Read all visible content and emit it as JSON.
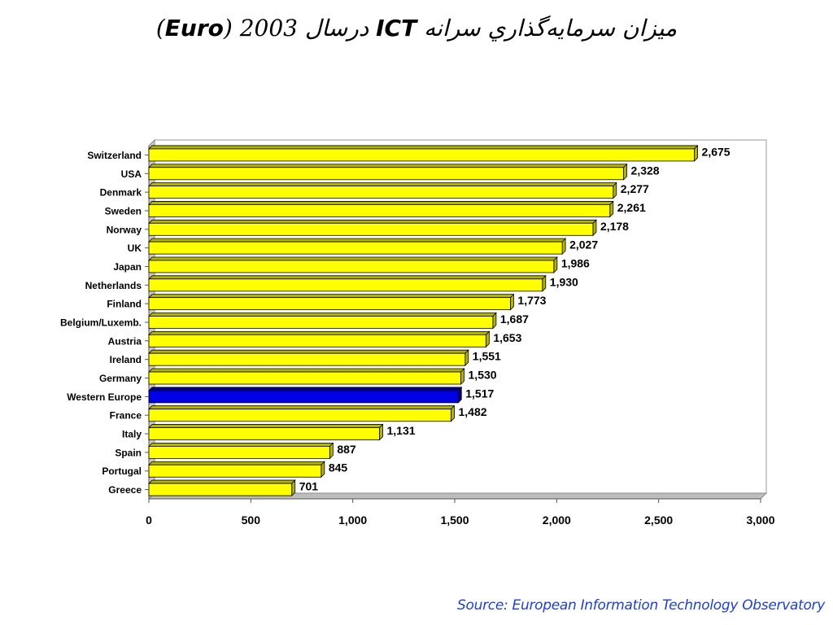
{
  "title": {
    "text_main": "ميزان سرمايه‌گذاري سرانه",
    "text_ict": "ICT",
    "text_year": "درسال 2003",
    "text_open": "(",
    "text_euro": "Euro",
    "text_close": ")"
  },
  "source": "Source: European Information Technology Observatory",
  "colors": {
    "bar": "#ffff00",
    "bar_highlight": "#0000e6",
    "bar_side": "#b5b500",
    "bar_side_highlight": "#00008c"
  },
  "chart_data": {
    "type": "bar",
    "orientation": "horizontal",
    "categories": [
      "Switzerland",
      "USA",
      "Denmark",
      "Sweden",
      "Norway",
      "UK",
      "Japan",
      "Netherlands",
      "Finland",
      "Belgium/Luxemb.",
      "Austria",
      "Ireland",
      "Germany",
      "Western Europe",
      "France",
      "Italy",
      "Spain",
      "Portugal",
      "Greece"
    ],
    "values": [
      2675,
      2328,
      2277,
      2261,
      2178,
      2027,
      1986,
      1930,
      1773,
      1687,
      1653,
      1551,
      1530,
      1517,
      1482,
      1131,
      887,
      845,
      701
    ],
    "value_labels": [
      "2,675",
      "2,328",
      "2,277",
      "2,261",
      "2,178",
      "2,027",
      "1,986",
      "1,930",
      "1,773",
      "1,687",
      "1,653",
      "1,551",
      "1,530",
      "1,517",
      "1,482",
      "1,131",
      "887",
      "845",
      "701"
    ],
    "highlight": "Western Europe",
    "xlim": [
      0,
      3000
    ],
    "xticks": [
      0,
      500,
      1000,
      1500,
      2000,
      2500,
      3000
    ],
    "xtick_labels": [
      "0",
      "500",
      "1,000",
      "1,500",
      "2,000",
      "2,500",
      "3,000"
    ],
    "grid": false
  }
}
